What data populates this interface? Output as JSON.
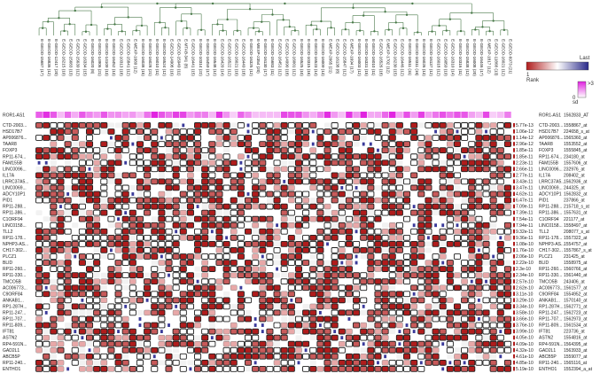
{
  "chart_data": {
    "type": "heatmap",
    "title": "",
    "columns": [
      "E-GEOD-15687 (17)",
      "E-GEOD-16836 (12)",
      "E-GEOD-12417 (20)",
      "E-GEOD-16215 (10)",
      "E-GEOD-15683 (13)",
      "E-GEOD-15639 (12)",
      "E-GEOD-16334 (15)",
      "E-GEOD-16020 (8)",
      "E-GEOD-14906 (21)",
      "E-GEOD-14109 (13)",
      "E-GEOD-16452 (13)",
      "E-GEOD-10313 (18)",
      "E-GEOD-15841 (12)",
      "E-MEXP-1689 (12)",
      "E-GEOD-16038 (15)",
      "E-GEOD-16028 (21)",
      "E-GEOD-16010 (11)",
      "E-GEOD-16524 (12)",
      "E-GEOD-14908 (16)",
      "E-GEOD-15949 (11)",
      "E-MTAB-341 (8)",
      "E-GEOD-16441 (15)",
      "E-GEOD-10314 (22)",
      "E-GEOD-16459 (17)",
      "E-GEOD-16548 (12)",
      "E-GEOD-16420 (14)",
      "E-GEOD-16522 (12)",
      "E-GEOD-16021 (16)",
      "E-GEOD-16449 (18)",
      "E-GEOD-16325 (12)",
      "E-MEXP-2354 (20)",
      "E-GEOD-16130 (17)",
      "E-GEOD-15683 (11)",
      "E-GEOD-16451 (12)",
      "E-GEOD-14990 (18)",
      "E-GEOD-16001 (12)",
      "E-GEOD-16525 (10)",
      "E-GEOD-10315 (16)",
      "E-GEOD-16523 (14)",
      "E-GEOD-16009 (13)",
      "E-MEXP-2065 (21)",
      "E-GEOD-16138 (8)",
      "E-GEOD-15847 (12)",
      "E-MEXP-1694 (17)",
      "E-GEOD-16003 (12)",
      "E-GEOD-16331 (15)",
      "E-GEOD-16010 (11)",
      "E-GEOD-16526 (18)",
      "E-MEXP-1702 (12)",
      "E-GEOD-16230 (15)",
      "E-GEOD-16446 (12)",
      "E-GEOD-16511 (11)",
      "E-GEOD-10311 (16)",
      "E-GEOD-16026 (13)",
      "E-GEOD-16137 (12)",
      "E-GEOD-16018 (12)",
      "E-GEOD-16059 (19)",
      "E-GEOD-16310 (14)",
      "E-GEOD-10316 (11)",
      "E-GEOD-15838 (12)",
      "E-GEOD-16008 (20)",
      "E-GEOD-16446 (17)",
      "E-MEXP-1817 (12)",
      "E-GEOD-11868 (13)",
      "E-GEOD-16021 (12)",
      "E-GEOD-6973 (21)"
    ],
    "rows": [
      {
        "gene": "ROR1-AS1",
        "pvalue": "",
        "probe": "1562833_AT"
      },
      {
        "gene": "CTD-2003...",
        "pvalue": "5.77e-13",
        "probe": "1558867_at"
      },
      {
        "gene": "HSD17B7",
        "pvalue": "1.06e-12",
        "probe": "224658_s_at"
      },
      {
        "gene": "AP006876...",
        "pvalue": "1.14e-12",
        "probe": "1565360_at"
      },
      {
        "gene": "TAAR8",
        "pvalue": "2.96e-12",
        "probe": "1553552_at"
      },
      {
        "gene": "FOXP3",
        "pvalue": "1.85e-11",
        "probe": "1555845_at"
      },
      {
        "gene": "RP11-674...",
        "pvalue": "1.85e-11",
        "probe": "234180_at"
      },
      {
        "gene": "FAM155B",
        "pvalue": "2.23e-11",
        "probe": "1557606_at"
      },
      {
        "gene": "LINC0096...",
        "pvalue": "2.66e-11",
        "probe": "232976_at"
      },
      {
        "gene": "IL17A",
        "pvalue": "2.77e-11",
        "probe": "208402_at"
      },
      {
        "gene": "LRRC37A5...",
        "pvalue": "3.43e-11",
        "probe": "1562936_at"
      },
      {
        "gene": "LINC0069...",
        "pvalue": "3.47e-11",
        "probe": "244325_at"
      },
      {
        "gene": "ADCY10P1",
        "pvalue": "4.62e-11",
        "probe": "1562832_at"
      },
      {
        "gene": "PID1",
        "pvalue": "6.47e-11",
        "probe": "237866_at"
      },
      {
        "gene": "RP11-288...",
        "pvalue": "7.09e-11",
        "probe": "215718_s_at"
      },
      {
        "gene": "RP11-386...",
        "pvalue": "7.39e-11",
        "probe": "1557631_at"
      },
      {
        "gene": "C1ORF94",
        "pvalue": "7.54e-11",
        "probe": "221177_at"
      },
      {
        "gene": "LINC0158...",
        "pvalue": "7.94e-11",
        "probe": "1558497_at"
      },
      {
        "gene": "TLL2",
        "pvalue": "9.32e-11",
        "probe": "208077_s_at"
      },
      {
        "gene": "RP11-178...",
        "pvalue": "9.36e-11",
        "probe": "1557322_at"
      },
      {
        "gene": "NPHP3-AS...",
        "pvalue": "1.08e-10",
        "probe": "1554757_at"
      },
      {
        "gene": "CH17-302...",
        "pvalue": "1.76e-10",
        "probe": "1557867_s_at"
      },
      {
        "gene": "PLCZ1",
        "pvalue": "2.06e-10",
        "probe": "231425_at"
      },
      {
        "gene": "BLID",
        "pvalue": "2.22e-10",
        "probe": "1558975_at"
      },
      {
        "gene": "RP11-260...",
        "pvalue": "2.3e-10",
        "probe": "1560766_at"
      },
      {
        "gene": "RP11-330...",
        "pvalue": "2.34e-10",
        "probe": "1561440_at"
      },
      {
        "gene": "TMCO5B",
        "pvalue": "2.57e-10",
        "probe": "243406_at"
      },
      {
        "gene": "AC006773...",
        "pvalue": "2.62e-10",
        "probe": "1561577_at"
      },
      {
        "gene": "C9ORF84",
        "pvalue": "3.11e-10",
        "probe": "1554952_at"
      },
      {
        "gene": "ANKAB1...",
        "pvalue": "3.29e-10",
        "probe": "1570140_at"
      },
      {
        "gene": "RP1-287H...",
        "pvalue": "3.34e-10",
        "probe": "1562771_at"
      },
      {
        "gene": "RP11-247...",
        "pvalue": "3.58e-10",
        "probe": "1562723_at"
      },
      {
        "gene": "RP11-707...",
        "pvalue": "3.66e-10",
        "probe": "1562973_at"
      },
      {
        "gene": "RP11-809...",
        "pvalue": "3.76e-10",
        "probe": "1561534_at"
      },
      {
        "gene": "IFT81",
        "pvalue": "3.99e-10",
        "probe": "223736_at"
      },
      {
        "gene": "ASTN2",
        "pvalue": "4.05e-10",
        "probe": "1554816_at"
      },
      {
        "gene": "RP4-591N...",
        "pvalue": "4.09e-10",
        "probe": "1564395_at"
      },
      {
        "gene": "GAD2L1",
        "pvalue": "4.32e-10",
        "probe": "1563933_at"
      },
      {
        "gene": "ABCB5P",
        "pvalue": "4.61e-10",
        "probe": "1559077_at"
      },
      {
        "gene": "RP11-240...",
        "pvalue": "4.85e-10",
        "probe": "1565116_at"
      },
      {
        "gene": "ENTHO1",
        "pvalue": "5.19e-10",
        "probe": "1552394_a_at"
      }
    ],
    "legend": {
      "rank_label": "Rank",
      "rank_min": "1",
      "last_label": "Last",
      "sd_label": "sd",
      "sd_min": "0",
      "sd_max": ">3"
    },
    "colors": {
      "dendrogram": "#4a7a4a",
      "high_rank": "#b01c1c",
      "mid_rank": "#e8a8a8",
      "low_rank": "#3a3a9a",
      "sd_bar": "#e060e0",
      "cell_border": "#222222"
    },
    "grid": false,
    "legend_position": "top-right"
  }
}
